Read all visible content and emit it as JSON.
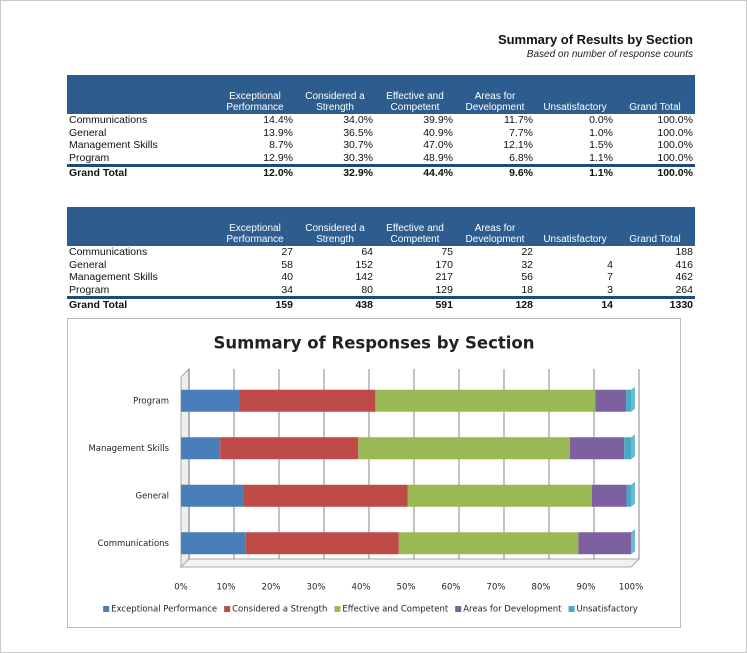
{
  "header": {
    "title": "Summary of Results by Section",
    "subtitle": "Based on number of response counts"
  },
  "table1": {
    "columns": [
      "Exceptional Performance",
      "Considered a Strength",
      "Effective and Competent",
      "Areas for Development",
      "Unsatisfactory",
      "Grand Total"
    ],
    "rows": [
      {
        "label": "Communications",
        "cells": [
          "14.4%",
          "34.0%",
          "39.9%",
          "11.7%",
          "0.0%",
          "100.0%"
        ]
      },
      {
        "label": "General",
        "cells": [
          "13.9%",
          "36.5%",
          "40.9%",
          "7.7%",
          "1.0%",
          "100.0%"
        ]
      },
      {
        "label": "Management Skills",
        "cells": [
          "8.7%",
          "30.7%",
          "47.0%",
          "12.1%",
          "1.5%",
          "100.0%"
        ]
      },
      {
        "label": "Program",
        "cells": [
          "12.9%",
          "30.3%",
          "48.9%",
          "6.8%",
          "1.1%",
          "100.0%"
        ]
      }
    ],
    "total": {
      "label": "Grand Total",
      "cells": [
        "12.0%",
        "32.9%",
        "44.4%",
        "9.6%",
        "1.1%",
        "100.0%"
      ]
    }
  },
  "table2": {
    "columns": [
      "Exceptional Performance",
      "Considered a Strength",
      "Effective and Competent",
      "Areas for Development",
      "Unsatisfactory",
      "Grand Total"
    ],
    "rows": [
      {
        "label": "Communications",
        "cells": [
          "27",
          "64",
          "75",
          "22",
          null,
          "188"
        ]
      },
      {
        "label": "General",
        "cells": [
          "58",
          "152",
          "170",
          "32",
          "4",
          "416"
        ]
      },
      {
        "label": "Management Skills",
        "cells": [
          "40",
          "142",
          "217",
          "56",
          "7",
          "462"
        ]
      },
      {
        "label": "Program",
        "cells": [
          "34",
          "80",
          "129",
          "18",
          "3",
          "264"
        ]
      }
    ],
    "total": {
      "label": "Grand Total",
      "cells": [
        "159",
        "438",
        "591",
        "128",
        "14",
        "1330"
      ]
    }
  },
  "chart_data": {
    "type": "stacked_barh",
    "title": "Summary of Responses by Section",
    "categories": [
      "Communications",
      "General",
      "Management Skills",
      "Program"
    ],
    "series": [
      {
        "name": "Exceptional Performance",
        "color": "#4a7ebb",
        "values": [
          14.4,
          13.9,
          8.7,
          12.9
        ]
      },
      {
        "name": "Considered a Strength",
        "color": "#be4b48",
        "values": [
          34.0,
          36.5,
          30.7,
          30.3
        ]
      },
      {
        "name": "Effective and Competent",
        "color": "#98b954",
        "values": [
          39.9,
          40.9,
          47.0,
          48.9
        ]
      },
      {
        "name": "Areas for Development",
        "color": "#7d60a0",
        "values": [
          11.7,
          7.7,
          12.1,
          6.8
        ]
      },
      {
        "name": "Unsatisfactory",
        "color": "#46aac5",
        "values": [
          0.0,
          1.0,
          1.5,
          1.1
        ]
      }
    ],
    "xlim": [
      0,
      100
    ],
    "xticks": [
      {
        "value": 0,
        "label": "0%"
      },
      {
        "value": 10,
        "label": "10%"
      },
      {
        "value": 20,
        "label": "20%"
      },
      {
        "value": 30,
        "label": "30%"
      },
      {
        "value": 40,
        "label": "40%"
      },
      {
        "value": 50,
        "label": "50%"
      },
      {
        "value": 60,
        "label": "60%"
      },
      {
        "value": 70,
        "label": "70%"
      },
      {
        "value": 80,
        "label": "80%"
      },
      {
        "value": 90,
        "label": "90%"
      },
      {
        "value": 100,
        "label": "100%"
      }
    ],
    "grid": true,
    "legend": "bottom"
  }
}
